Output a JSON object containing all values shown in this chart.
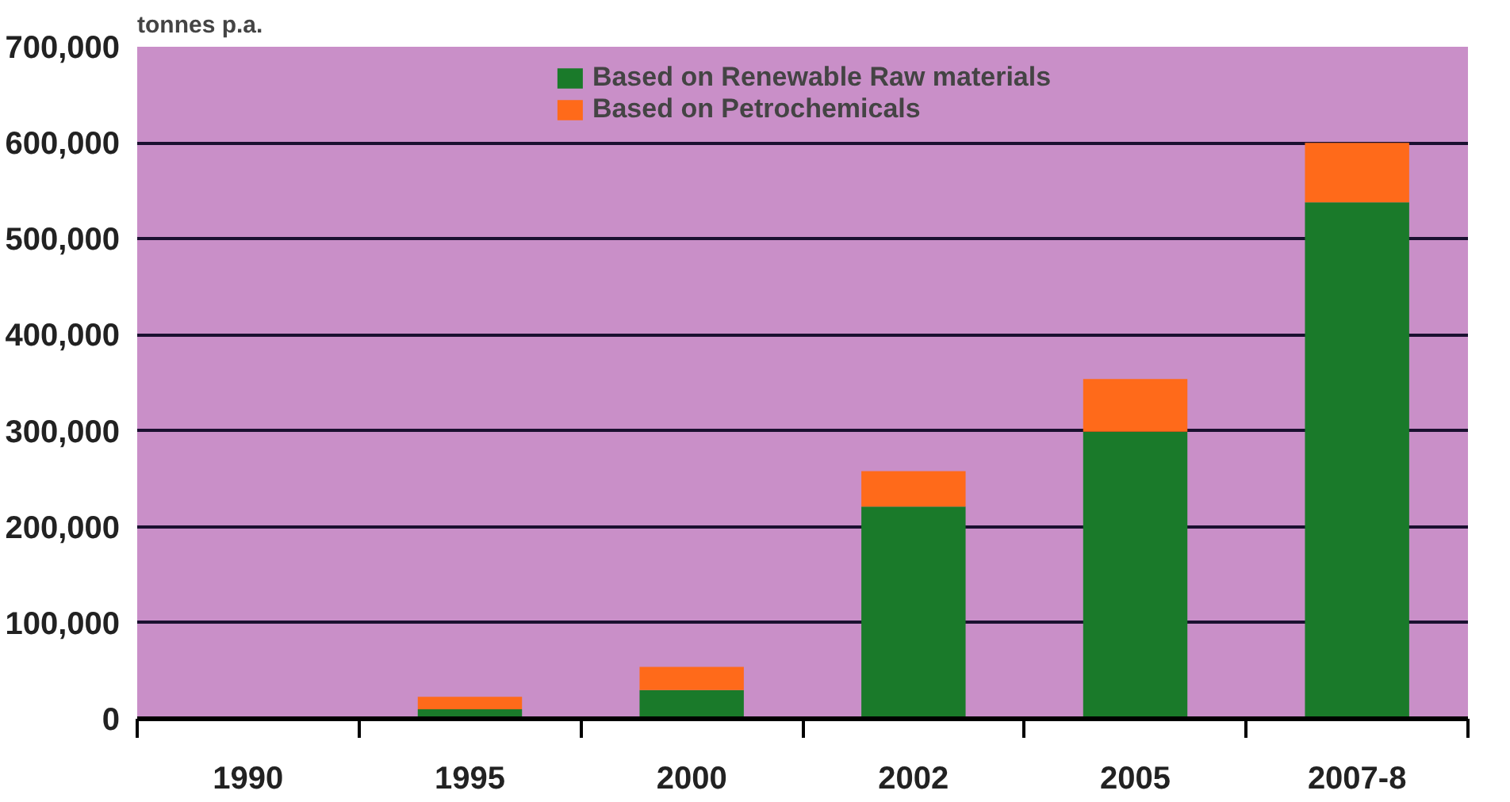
{
  "chart_data": {
    "type": "bar",
    "stacked": true,
    "ylabel": "tonnes p.a.",
    "categories": [
      "1990",
      "1995",
      "2000",
      "2002",
      "2005",
      "2007-8"
    ],
    "series": [
      {
        "name": "Based on Renewable Raw materials",
        "color": "#1a7a2a",
        "values": [
          0,
          10000,
          30000,
          221000,
          299000,
          538000
        ]
      },
      {
        "name": "Based on Petrochemicals",
        "color": "#ff6a1a",
        "values": [
          0,
          13000,
          24000,
          37000,
          55000,
          62000
        ]
      }
    ],
    "ylim": [
      0,
      700000
    ],
    "yticks": [
      {
        "value": 0,
        "label": "0"
      },
      {
        "value": 100000,
        "label": "100,000"
      },
      {
        "value": 200000,
        "label": "200,000"
      },
      {
        "value": 300000,
        "label": "300,000"
      },
      {
        "value": 400000,
        "label": "400,000"
      },
      {
        "value": 500000,
        "label": "500,000"
      },
      {
        "value": 600000,
        "label": "600,000"
      },
      {
        "value": 700000,
        "label": "700,000"
      }
    ],
    "grid": "y",
    "legend": "top"
  }
}
